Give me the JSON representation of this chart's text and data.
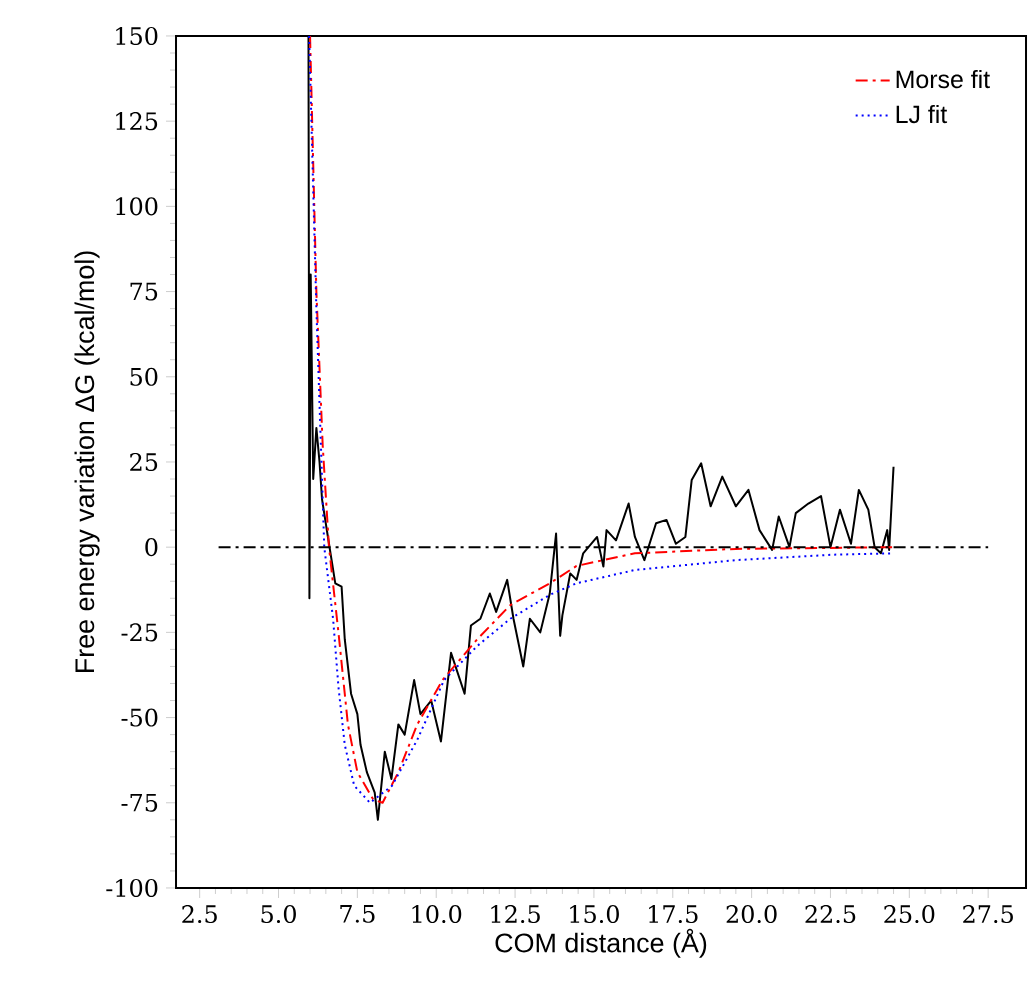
{
  "chart_data": {
    "type": "line",
    "xlabel": "COM distance (Å)",
    "ylabel": "Free energy variation ΔG (kcal/mol)",
    "xlim": [
      1.75,
      28.7
    ],
    "ylim": [
      -100,
      150
    ],
    "xticks": [
      {
        "value": 2.5,
        "label": "2.5"
      },
      {
        "value": 5,
        "label": "5.0"
      },
      {
        "value": 7.5,
        "label": "7.5"
      },
      {
        "value": 10,
        "label": "10.0"
      },
      {
        "value": 12.5,
        "label": "12.5"
      },
      {
        "value": 15,
        "label": "15.0"
      },
      {
        "value": 17.5,
        "label": "17.5"
      },
      {
        "value": 20,
        "label": "20.0"
      },
      {
        "value": 22.5,
        "label": "22.5"
      },
      {
        "value": 25,
        "label": "25.0"
      },
      {
        "value": 27.5,
        "label": "27.5"
      }
    ],
    "yticks": [
      -100,
      -75,
      -50,
      -25,
      0,
      25,
      50,
      75,
      100,
      125,
      150
    ],
    "legend": "top right",
    "grid": false,
    "series": [
      {
        "color": "#000000",
        "line_style": "solid",
        "x": [
          5.95,
          5.98,
          6.02,
          6.1,
          6.2,
          6.3,
          6.38,
          6.6,
          6.8,
          7.0,
          7.1,
          7.3,
          7.5,
          7.6,
          7.8,
          8.05,
          8.15,
          8.37,
          8.58,
          8.8,
          9.0,
          9.3,
          9.5,
          9.84,
          10.15,
          10.47,
          10.9,
          11.1,
          11.4,
          11.7,
          11.9,
          12.25,
          12.45,
          12.76,
          12.97,
          13.3,
          13.6,
          13.8,
          13.93,
          14.0,
          14.25,
          14.45,
          14.66,
          15.1,
          15.3,
          15.4,
          15.7,
          16.1,
          16.3,
          16.6,
          16.97,
          17.3,
          17.6,
          17.9,
          18.1,
          18.4,
          18.7,
          19.07,
          19.5,
          19.9,
          20.25,
          20.65,
          20.86,
          21.2,
          21.4,
          21.8,
          22.2,
          22.5,
          22.8,
          23.15,
          23.4,
          23.7,
          23.9,
          24.1,
          24.3,
          24.36,
          24.5
        ],
        "values": [
          150,
          -15,
          80,
          20,
          35,
          25,
          14,
          1,
          -10.6,
          -11.6,
          -27,
          -43,
          -49,
          -58,
          -66,
          -72,
          -80,
          -60,
          -68,
          -52,
          -55,
          -39,
          -49,
          -45,
          -57,
          -31,
          -43,
          -23,
          -21,
          -13.6,
          -19,
          -9.6,
          -21,
          -35,
          -21,
          -25,
          -13.6,
          4,
          -26,
          -20,
          -7.7,
          -9.6,
          -1.8,
          3,
          -5.7,
          5,
          2,
          12.8,
          3,
          -3.8,
          7,
          8,
          1,
          3,
          19.7,
          24.6,
          12,
          20.7,
          12,
          16.8,
          5,
          -0.8,
          9,
          0,
          10,
          12.8,
          15,
          0,
          11,
          1,
          16.8,
          11,
          0,
          -1.8,
          5,
          -0.8,
          23.6
        ]
      },
      {
        "name": "Morse fit",
        "color": "#ff0000",
        "line_style": "dashdot",
        "x": [
          6.0,
          6.2,
          6.4,
          6.6,
          6.9,
          7.2,
          7.5,
          8.0,
          8.3,
          8.8,
          9.4,
          10.2,
          11.3,
          12.35,
          13.6,
          14.45,
          16.3,
          19.5,
          24.6
        ],
        "values": [
          150,
          75,
          30,
          0,
          -25,
          -52,
          -66,
          -74,
          -75,
          -66,
          -52,
          -39,
          -27,
          -17,
          -10.6,
          -5.5,
          -1.8,
          -0.5,
          0
        ]
      },
      {
        "name": "LJ fit",
        "color": "#0000ff",
        "line_style": "dotted",
        "x": [
          5.97,
          6.2,
          6.45,
          6.73,
          6.9,
          7.1,
          7.4,
          7.9,
          8.6,
          9.4,
          10.25,
          11.3,
          12.35,
          13.6,
          14.45,
          16.3,
          19.5,
          22.6,
          24.5
        ],
        "values": [
          150,
          70,
          0,
          -21,
          -41,
          -58,
          -70,
          -75,
          -70,
          -56.5,
          -39,
          -29,
          -21,
          -14,
          -10.6,
          -6.7,
          -3.8,
          -2.2,
          -1.8
        ]
      },
      {
        "color": "#000000",
        "line_style": "dashdot",
        "x": [
          3.1,
          27.5
        ],
        "values": [
          0,
          0
        ]
      }
    ]
  }
}
